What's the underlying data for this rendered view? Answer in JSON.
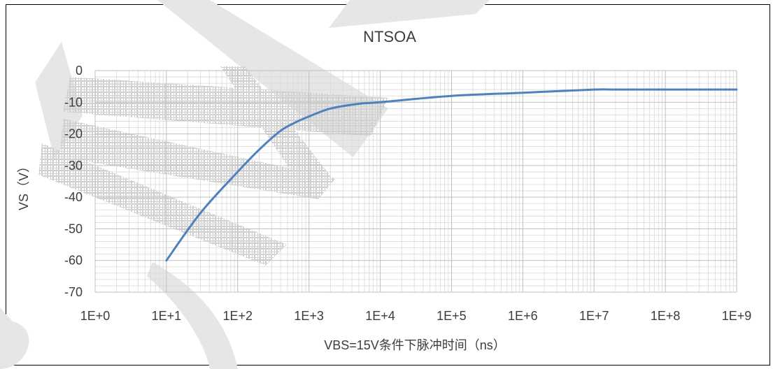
{
  "chart_data": {
    "type": "line",
    "title": "NTSOA",
    "xlabel": "VBS=15V条件下脉冲时间（ns）",
    "ylabel": "VS（V）",
    "x_scale": "log",
    "xlim": [
      1,
      1000000000
    ],
    "ylim": [
      -70,
      0
    ],
    "x_tick_labels": [
      "1E+0",
      "1E+1",
      "1E+2",
      "1E+3",
      "1E+4",
      "1E+5",
      "1E+6",
      "1E+7",
      "1E+8",
      "1E+9"
    ],
    "y_tick_labels": [
      "0",
      "-10",
      "-20",
      "-30",
      "-40",
      "-50",
      "-60",
      "-70"
    ],
    "y_ticks": [
      0,
      -10,
      -20,
      -30,
      -40,
      -50,
      -60,
      -70
    ],
    "grid": true,
    "legend": "none",
    "series": [
      {
        "color": "#4f81bd",
        "x": [
          10,
          30,
          100,
          200,
          400,
          700,
          1000,
          2000,
          5000,
          10000,
          100000,
          1000000,
          10000000,
          20000000,
          100000000,
          1000000000
        ],
        "y": [
          -60,
          -45,
          -32,
          -25,
          -19,
          -16,
          -14.5,
          -12,
          -10.5,
          -10,
          -8,
          -7,
          -6,
          -6,
          -6,
          -6
        ]
      }
    ]
  },
  "colors": {
    "line": "#4f81bd",
    "grid": "#d9d9d9",
    "text": "#3d3d3d",
    "watermark": "#cfcfcf"
  }
}
